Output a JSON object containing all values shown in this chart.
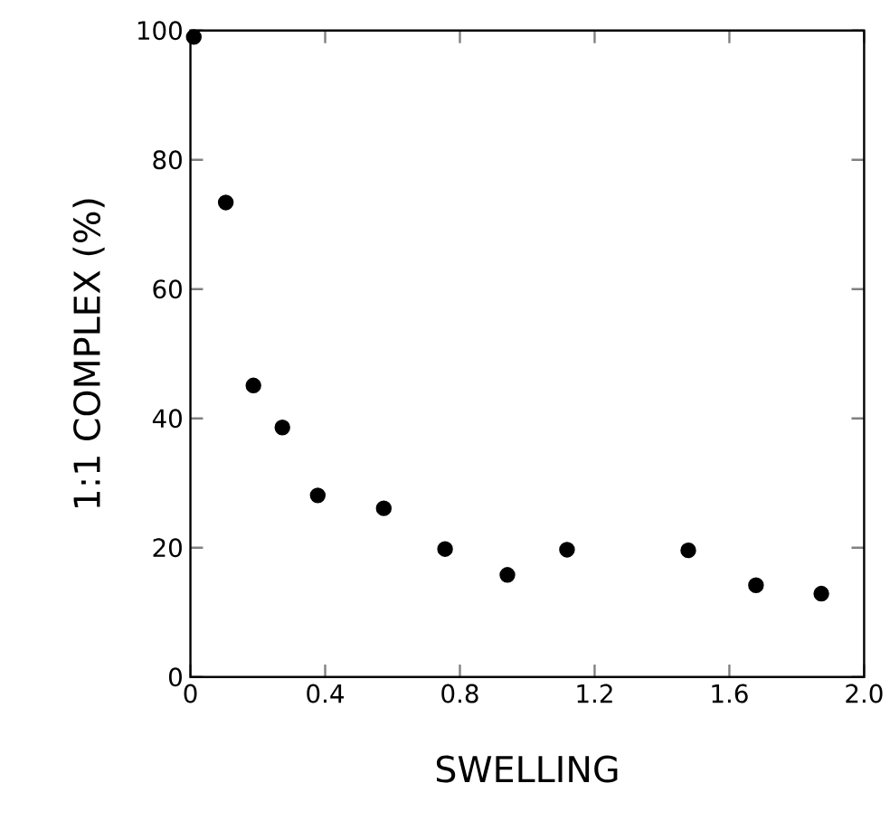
{
  "chart_data": {
    "type": "scatter",
    "xlabel": "SWELLING",
    "ylabel": "1:1 COMPLEX (%)",
    "x": [
      0.01,
      0.105,
      0.187,
      0.273,
      0.378,
      0.574,
      0.756,
      0.941,
      1.118,
      1.478,
      1.679,
      1.873
    ],
    "series": [
      {
        "color": "#000000",
        "values": [
          99,
          73.4,
          45.1,
          38.6,
          28.1,
          26.1,
          19.8,
          15.8,
          19.7,
          19.6,
          14.2,
          12.9
        ]
      }
    ],
    "xlim": [
      0,
      2.0
    ],
    "ylim": [
      0,
      100
    ],
    "xticks": [
      {
        "value": 0,
        "label": "0"
      },
      0.4,
      0.8,
      1.2,
      1.6,
      {
        "value": 2.0,
        "label": "2.0"
      }
    ],
    "yticks": [
      0,
      20,
      40,
      60,
      80,
      100
    ],
    "marker": "circle",
    "grid": false
  }
}
